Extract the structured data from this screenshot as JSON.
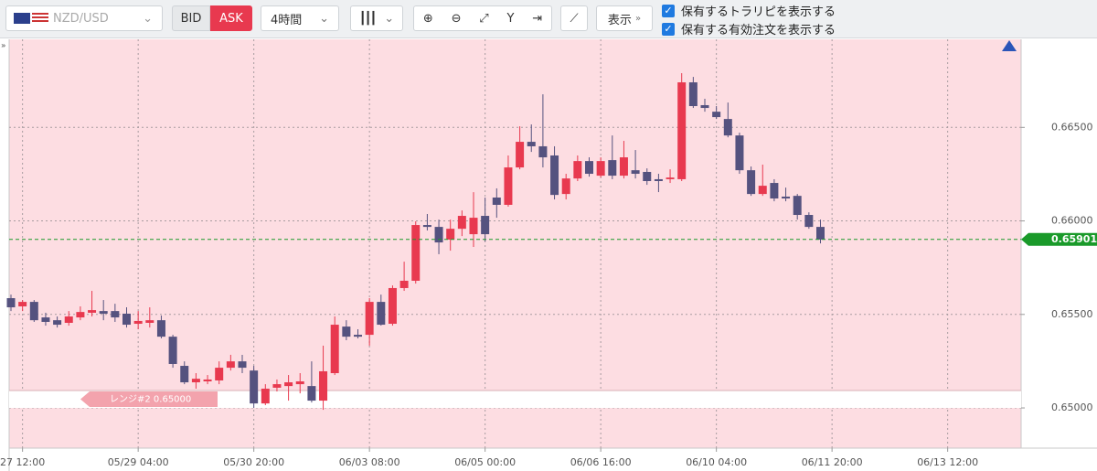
{
  "toolbar": {
    "pair": "NZD/USD",
    "bid": "BID",
    "ask": "ASK",
    "timeframe": "4時間",
    "display": "表示",
    "checkboxes": [
      "保有するトラリピを表示する",
      "保有する有効注文を表示する"
    ]
  },
  "chart_data": {
    "type": "candlestick",
    "categories": [
      null,
      "27 12:00",
      null,
      null,
      null,
      null,
      null,
      null,
      null,
      null,
      null,
      "05/29 04:00",
      null,
      null,
      null,
      null,
      null,
      null,
      null,
      null,
      null,
      "05/30 20:00",
      null,
      null,
      null,
      null,
      null,
      null,
      null,
      null,
      null,
      "06/03 08:00",
      null,
      null,
      null,
      null,
      null,
      null,
      null,
      null,
      null,
      "06/05 00:00",
      null,
      null,
      null,
      null,
      null,
      null,
      null,
      null,
      null,
      "06/06 16:00",
      null,
      null,
      null,
      null,
      null,
      null,
      null,
      null,
      null,
      "06/10 04:00",
      null,
      null,
      null,
      null,
      null,
      null,
      null,
      null,
      null,
      "06/11 20:00",
      null,
      null,
      null,
      null,
      null,
      null,
      null,
      null,
      null,
      "06/13 12:00",
      null,
      null,
      null,
      null,
      null,
      null
    ],
    "open": [
      0.65587,
      0.65543,
      0.65567,
      0.65484,
      0.65469,
      0.65455,
      0.65484,
      0.65509,
      0.65518,
      0.65518,
      0.65504,
      0.6545,
      0.65455,
      0.65469,
      0.65381,
      0.65225,
      0.65137,
      0.65142,
      0.65147,
      0.65215,
      0.65249,
      0.652,
      0.65024,
      0.65108,
      0.65117,
      0.65127,
      0.65117,
      0.65039,
      0.65186,
      0.65435,
      0.65391,
      0.65391,
      0.65567,
      0.6545,
      0.65641,
      0.6568,
      0.65978,
      0.65968,
      0.659,
      0.65958,
      0.65929,
      0.66027,
      0.66125,
      0.66086,
      0.66286,
      0.66423,
      0.66399,
      0.6635,
      0.66144,
      0.66227,
      0.6632,
      0.66242,
      0.66325,
      0.66242,
      0.66271,
      0.66262,
      0.66223,
      0.66223,
      0.66223,
      0.66741,
      0.66619,
      0.66584,
      0.66545,
      0.66457,
      0.66271,
      0.66144,
      0.66203,
      0.6613,
      0.66134,
      0.66032,
      0.65968,
      null,
      null,
      null,
      null,
      null,
      null,
      null,
      null,
      null,
      null,
      null,
      null,
      null,
      null,
      null,
      null,
      null
    ],
    "high": [
      0.65606,
      0.65577,
      0.65577,
      0.65509,
      0.65489,
      0.65518,
      0.65543,
      0.65626,
      0.65577,
      0.65557,
      0.65538,
      0.65518,
      0.65538,
      0.65494,
      0.65391,
      0.65249,
      0.65186,
      0.65176,
      0.65249,
      0.65284,
      0.65284,
      0.65225,
      0.65127,
      0.65152,
      0.65176,
      0.65186,
      0.65249,
      0.65333,
      0.65489,
      0.65469,
      0.65421,
      0.65587,
      0.65606,
      0.65655,
      0.65782,
      0.65998,
      0.66037,
      0.66007,
      0.66007,
      0.66056,
      0.66154,
      0.66125,
      0.66174,
      0.6635,
      0.66506,
      0.66516,
      0.66677,
      0.66399,
      0.66252,
      0.6635,
      0.6634,
      0.6634,
      0.66457,
      0.66428,
      0.66379,
      0.66281,
      0.66252,
      0.66276,
      0.6679,
      0.6677,
      0.66653,
      0.66614,
      0.66633,
      0.66472,
      0.66291,
      0.66301,
      0.66223,
      0.66178,
      0.66144,
      0.66046,
      0.66007,
      null,
      null,
      null,
      null,
      null,
      null,
      null,
      null,
      null,
      null,
      null,
      null,
      null,
      null,
      null,
      null,
      null
    ],
    "low": [
      0.65518,
      0.65518,
      0.6546,
      0.6544,
      0.6543,
      0.6544,
      0.65469,
      0.65489,
      0.65469,
      0.6546,
      0.6543,
      0.65421,
      0.6543,
      0.65372,
      0.65215,
      0.65127,
      0.65103,
      0.65127,
      0.65127,
      0.652,
      0.65186,
      0.65,
      0.65015,
      0.65088,
      0.65039,
      0.65078,
      0.65029,
      0.6499,
      0.65176,
      0.65362,
      0.65372,
      0.65333,
      0.6544,
      0.6544,
      0.65626,
      0.65665,
      0.65949,
      0.65822,
      0.65841,
      0.65919,
      0.65861,
      0.6589,
      0.66017,
      0.66076,
      0.66276,
      0.66369,
      0.66286,
      0.66115,
      0.66115,
      0.66213,
      0.66237,
      0.66232,
      0.66223,
      0.66227,
      0.66227,
      0.66193,
      0.66154,
      0.66203,
      0.66213,
      0.66604,
      0.66584,
      0.66545,
      0.66447,
      0.66252,
      0.66134,
      0.66134,
      0.66105,
      0.66105,
      0.66007,
      0.65958,
      0.6588,
      null,
      null,
      null,
      null,
      null,
      null,
      null,
      null,
      null,
      null,
      null,
      null,
      null,
      null,
      null,
      null,
      null
    ],
    "close": [
      0.65538,
      0.65567,
      0.65469,
      0.6546,
      0.65445,
      0.65489,
      0.65513,
      0.65523,
      0.65504,
      0.65484,
      0.65445,
      0.65465,
      0.65469,
      0.65381,
      0.65235,
      0.65137,
      0.65156,
      0.65152,
      0.65215,
      0.65249,
      0.65215,
      0.65024,
      0.65103,
      0.65127,
      0.65137,
      0.65142,
      0.65039,
      0.65196,
      0.65445,
      0.65381,
      0.65381,
      0.65567,
      0.65445,
      0.65641,
      0.6568,
      0.65978,
      0.65968,
      0.65885,
      0.65958,
      0.66027,
      0.66017,
      0.65929,
      0.66086,
      0.66286,
      0.66423,
      0.66399,
      0.6634,
      0.66139,
      0.66227,
      0.6632,
      0.66252,
      0.6632,
      0.66242,
      0.6634,
      0.66252,
      0.66213,
      0.66213,
      0.66232,
      0.66741,
      0.66614,
      0.66604,
      0.66555,
      0.66457,
      0.66271,
      0.66144,
      0.66188,
      0.6612,
      0.6612,
      0.66032,
      0.65968,
      0.659,
      null,
      null,
      null,
      null,
      null,
      null,
      null,
      null,
      null,
      null,
      null,
      null,
      null,
      null,
      null,
      null,
      null
    ],
    "up_color": "#e8394f",
    "down_color": "#55527f",
    "ylim": [
      0.64785,
      0.66971
    ],
    "yticks": [
      {
        "value": 0.65,
        "label": "0.65000"
      },
      {
        "value": 0.655,
        "label": "0.65500"
      },
      {
        "value": 0.66,
        "label": "0.66000"
      },
      {
        "value": 0.665,
        "label": "0.66500"
      }
    ],
    "grid": true,
    "current_price": {
      "value": 0.65901,
      "label": "0.65901",
      "color": "#1a9a2a"
    },
    "range": {
      "label": "レンジ#2 0.65000",
      "from": 0.65,
      "to": 0.65093
    }
  }
}
